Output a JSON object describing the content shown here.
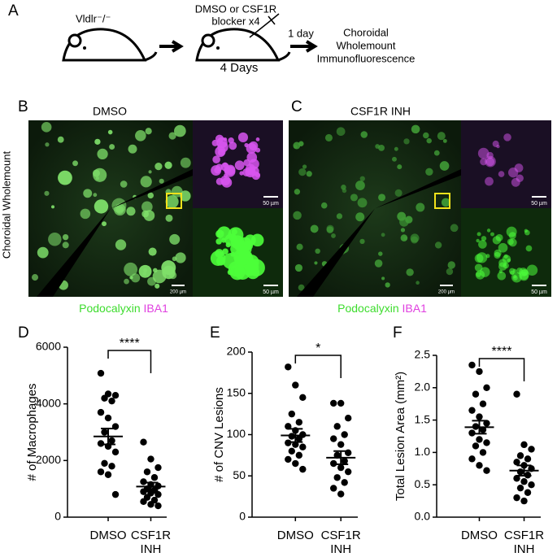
{
  "panel_a": {
    "label": "A",
    "genotype": "Vldlr⁻/⁻",
    "treatment": [
      "DMSO or CSF1R",
      "blocker x4"
    ],
    "duration": "4 Days",
    "wait": "1 day",
    "readout": [
      "Choroidal",
      "Wholemount",
      "Immunofluorescence"
    ]
  },
  "panel_b": {
    "label": "B",
    "title": "DMSO",
    "scale_main": "200 µm",
    "scale_top": "50 µm",
    "scale_bottom": "50 µm",
    "stain_1": "Podocalyxin",
    "stain_2": "IBA1"
  },
  "panel_c": {
    "label": "C",
    "title": "CSF1R INH",
    "scale_main": "200 µm",
    "scale_top": "50 µm",
    "scale_bottom": "50 µm",
    "stain_1": "Podocalyxin",
    "stain_2": "IBA1"
  },
  "side_label": "Choroidal Wholemount",
  "chart_data": [
    {
      "type": "dotplot",
      "label": "D",
      "ylabel": "# of Macrophages",
      "categories": [
        "DMSO",
        "CSF1R INH"
      ],
      "significance": "****",
      "color": "#000000",
      "groups": [
        {
          "values": [
            5080,
            4350,
            4300,
            4200,
            4100,
            3700,
            3500,
            3200,
            3000,
            2700,
            2600,
            2500,
            2300,
            1900,
            1800,
            1600,
            1500,
            800
          ],
          "mean": 2850,
          "sem": 280
        },
        {
          "values": [
            2650,
            2050,
            1750,
            1600,
            1400,
            1250,
            1150,
            1100,
            1000,
            950,
            900,
            850,
            800,
            700,
            600,
            550,
            450,
            400
          ],
          "mean": 1080,
          "sem": 140
        }
      ],
      "ylim": [
        0,
        6000
      ],
      "yticks": [
        0,
        2000,
        4000,
        6000
      ]
    },
    {
      "type": "dotplot",
      "label": "E",
      "ylabel": "# of CNV Lesions",
      "categories": [
        "DMSO",
        "CSF1R INH"
      ],
      "significance": "*",
      "color": "#000000",
      "groups": [
        {
          "values": [
            182,
            160,
            145,
            125,
            115,
            110,
            105,
            100,
            98,
            95,
            90,
            88,
            85,
            80,
            75,
            70,
            65,
            58
          ],
          "mean": 99,
          "sem": 8
        },
        {
          "values": [
            138,
            138,
            120,
            110,
            100,
            95,
            88,
            78,
            75,
            68,
            65,
            60,
            55,
            48,
            42,
            35,
            28
          ],
          "mean": 72,
          "sem": 8
        }
      ],
      "ylim": [
        0,
        200
      ],
      "yticks": [
        0,
        50,
        100,
        150,
        200
      ]
    },
    {
      "type": "dotplot",
      "label": "F",
      "ylabel": "Total Lesion Area (mm²)",
      "categories": [
        "DMSO",
        "CSF1R INH"
      ],
      "significance": "****",
      "color": "#000000",
      "groups": [
        {
          "values": [
            2.35,
            2.25,
            2.0,
            1.9,
            1.75,
            1.65,
            1.55,
            1.45,
            1.4,
            1.35,
            1.3,
            1.2,
            1.15,
            1.1,
            1.0,
            0.9,
            0.8,
            0.72
          ],
          "mean": 1.39,
          "sem": 0.1
        },
        {
          "values": [
            1.9,
            1.12,
            1.05,
            0.95,
            0.9,
            0.85,
            0.8,
            0.75,
            0.7,
            0.65,
            0.6,
            0.55,
            0.5,
            0.45,
            0.38,
            0.3,
            0.25
          ],
          "mean": 0.72,
          "sem": 0.08
        }
      ],
      "ylim": [
        0,
        2.5
      ],
      "yticks": [
        {
          "value": 0,
          "label": "0.0"
        },
        0.5,
        {
          "value": 1,
          "label": "1.0"
        },
        1.5,
        {
          "value": 2,
          "label": "2.0"
        },
        2.5
      ]
    }
  ]
}
